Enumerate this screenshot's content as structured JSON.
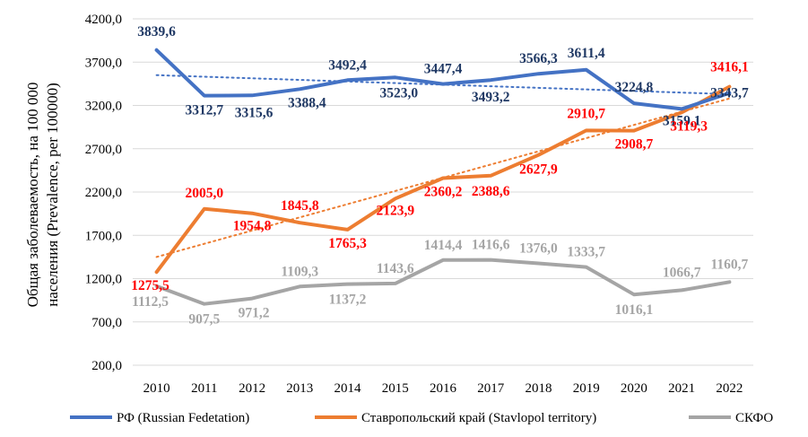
{
  "chart_data": {
    "type": "line",
    "title": "",
    "xlabel": "",
    "ylabel_line1": "Общая заболеваемость, на 100 000",
    "ylabel_line2": "населения (Prevalence, per 100000)",
    "ylim": [
      200,
      4200
    ],
    "ytick_values": [
      200,
      700,
      1200,
      1700,
      2200,
      2700,
      3200,
      3700,
      4200
    ],
    "yticks": [
      "200,0",
      "700,0",
      "1200,0",
      "1700,0",
      "2200,0",
      "2700,0",
      "3200,0",
      "3700,0",
      "4200,0"
    ],
    "categories": [
      "2010",
      "2011",
      "2012",
      "2013",
      "2014",
      "2015",
      "2016",
      "2017",
      "2018",
      "2019",
      "2020",
      "2021",
      "2022"
    ],
    "legend_position": "bottom",
    "series": [
      {
        "name": "РФ (Russian Fedetation)",
        "color": "#4472C4",
        "label_color": "#1F3864",
        "values": [
          3839.6,
          3312.7,
          3315.6,
          3388.4,
          3492.4,
          3523.0,
          3447.4,
          3493.2,
          3566.3,
          3611.4,
          3224.8,
          3159.1,
          3343.7
        ],
        "labels": [
          "3839,6",
          "3312,7",
          "3315,6",
          "3388,4",
          "3492,4",
          "3523,0",
          "3447,4",
          "3493,2",
          "3566,3",
          "3611,4",
          "3224,8",
          "3159,1",
          "3343,7"
        ],
        "trend": [
          3550,
          3330
        ]
      },
      {
        "name": "Ставропольский край (Stavlopol territory)",
        "color": "#ED7D31",
        "label_color": "#FF0000",
        "values": [
          1275.5,
          2005.0,
          1954.8,
          1845.8,
          1765.3,
          2123.9,
          2360.2,
          2388.6,
          2627.9,
          2910.7,
          2908.7,
          3119.3,
          3416.1
        ],
        "labels": [
          "1275,5",
          "2005,0",
          "1954,8",
          "1845,8",
          "1765,3",
          "2123,9",
          "2360,2",
          "2388,6",
          "2627,9",
          "2910,7",
          "2908,7",
          "3119,3",
          "3416,1"
        ],
        "trend": [
          1450,
          3280
        ]
      },
      {
        "name": "СКФО",
        "color": "#A5A5A5",
        "label_color": "#A5A5A5",
        "values": [
          1112.5,
          907.5,
          971.2,
          1109.3,
          1137.2,
          1143.6,
          1414.4,
          1416.6,
          1376.0,
          1333.7,
          1016.1,
          1066.7,
          1160.7
        ],
        "labels": [
          "1112,5",
          "907,5",
          "971,2",
          "1109,3",
          "1137,2",
          "1143,6",
          "1414,4",
          "1416,6",
          "1376,0",
          "1333,7",
          "1016,1",
          "1066,7",
          "1160,7"
        ],
        "trend": null
      }
    ]
  }
}
